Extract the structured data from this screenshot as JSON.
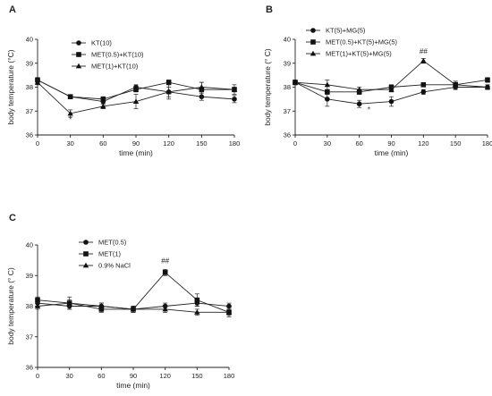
{
  "chart_data": [
    {
      "type": "line",
      "panel": "A",
      "xlabel": "time (min)",
      "ylabel": "body temperature (°C)",
      "x": [
        0,
        30,
        60,
        90,
        120,
        150,
        180
      ],
      "xticks": [
        "0",
        "30",
        "60",
        "90",
        "120",
        "150",
        "180"
      ],
      "ylim": [
        36,
        40
      ],
      "yticks": [
        "36",
        "37",
        "38",
        "39",
        "40"
      ],
      "legend_position": "top-left",
      "grid": false,
      "series": [
        {
          "name": "KT(10)",
          "marker": "circle",
          "values": [
            38.3,
            37.6,
            37.4,
            38.0,
            37.8,
            37.6,
            37.5
          ],
          "errors": [
            0.1,
            0.05,
            0.1,
            0.1,
            0.2,
            0.15,
            0.15
          ]
        },
        {
          "name": "MET(0.5)+KT(10)",
          "marker": "square",
          "values": [
            38.3,
            37.6,
            37.5,
            37.9,
            38.2,
            37.9,
            37.9
          ],
          "errors": [
            0.1,
            0.05,
            0.1,
            0.1,
            0.1,
            0.3,
            0.2
          ]
        },
        {
          "name": "MET(1)+KT(10)",
          "marker": "triangle",
          "values": [
            38.2,
            36.9,
            37.2,
            37.4,
            37.8,
            38.0,
            37.9
          ],
          "errors": [
            0.1,
            0.15,
            0.1,
            0.3,
            0.3,
            0.2,
            0.1
          ]
        }
      ],
      "annotations": [
        {
          "text": "*",
          "x": 30,
          "y": 36.55
        }
      ]
    },
    {
      "type": "line",
      "panel": "B",
      "xlabel": "time (min)",
      "ylabel": "body temperature (° C)",
      "x": [
        0,
        30,
        60,
        90,
        120,
        150,
        180
      ],
      "xticks": [
        "0",
        "30",
        "60",
        "90",
        "120",
        "150",
        "180"
      ],
      "ylim": [
        36,
        40
      ],
      "yticks": [
        "36",
        "37",
        "38",
        "39",
        "40"
      ],
      "legend_position": "top-left",
      "grid": false,
      "series": [
        {
          "name": "KT(5)+MG(5)",
          "marker": "circle",
          "values": [
            38.2,
            37.5,
            37.3,
            37.4,
            37.8,
            38.0,
            38.0
          ],
          "errors": [
            0.1,
            0.3,
            0.15,
            0.2,
            0.1,
            0.1,
            0.1
          ]
        },
        {
          "name": "MET(0.5)+KT(5)+MG(5)",
          "marker": "square",
          "values": [
            38.2,
            37.8,
            37.8,
            38.0,
            38.1,
            38.1,
            38.3
          ],
          "errors": [
            0.1,
            0.1,
            0.1,
            0.1,
            0.05,
            0.1,
            0.1
          ]
        },
        {
          "name": "MET(1)+KT(5)+MG(5)",
          "marker": "triangle",
          "values": [
            38.2,
            38.1,
            37.9,
            37.9,
            39.1,
            38.1,
            38.0
          ],
          "errors": [
            0.1,
            0.2,
            0.1,
            0.1,
            0.1,
            0.15,
            0.1
          ]
        }
      ],
      "annotations": [
        {
          "text": "*",
          "x": 69,
          "y": 36.95
        },
        {
          "text": "##",
          "x": 120,
          "y": 39.4
        }
      ]
    },
    {
      "type": "line",
      "panel": "C",
      "xlabel": "time (min)",
      "ylabel": "body temperature (° C)",
      "x": [
        0,
        30,
        60,
        90,
        120,
        150,
        180
      ],
      "xticks": [
        "0",
        "30",
        "60",
        "90",
        "120",
        "150",
        "180"
      ],
      "ylim": [
        36,
        40
      ],
      "yticks": [
        "36",
        "37",
        "38",
        "39",
        "40"
      ],
      "legend_position": "top-left",
      "grid": false,
      "series": [
        {
          "name": "MET(0.5)",
          "marker": "circle",
          "values": [
            38.1,
            38.0,
            38.0,
            37.9,
            38.0,
            38.1,
            38.0
          ],
          "errors": [
            0.1,
            0.1,
            0.1,
            0.1,
            0.1,
            0.1,
            0.1
          ]
        },
        {
          "name": "MET(1)",
          "marker": "square",
          "values": [
            38.2,
            38.1,
            37.9,
            37.9,
            39.1,
            38.2,
            37.8
          ],
          "errors": [
            0.1,
            0.2,
            0.1,
            0.1,
            0.1,
            0.2,
            0.15
          ]
        },
        {
          "name": "0.9% NaCl",
          "marker": "triangle",
          "values": [
            38.0,
            38.1,
            38.0,
            37.9,
            37.9,
            37.8,
            37.8
          ],
          "errors": [
            0.1,
            0.1,
            0.1,
            0.1,
            0.1,
            0.1,
            0.1
          ]
        }
      ],
      "annotations": [
        {
          "text": "##",
          "x": 120,
          "y": 39.4
        }
      ]
    }
  ]
}
